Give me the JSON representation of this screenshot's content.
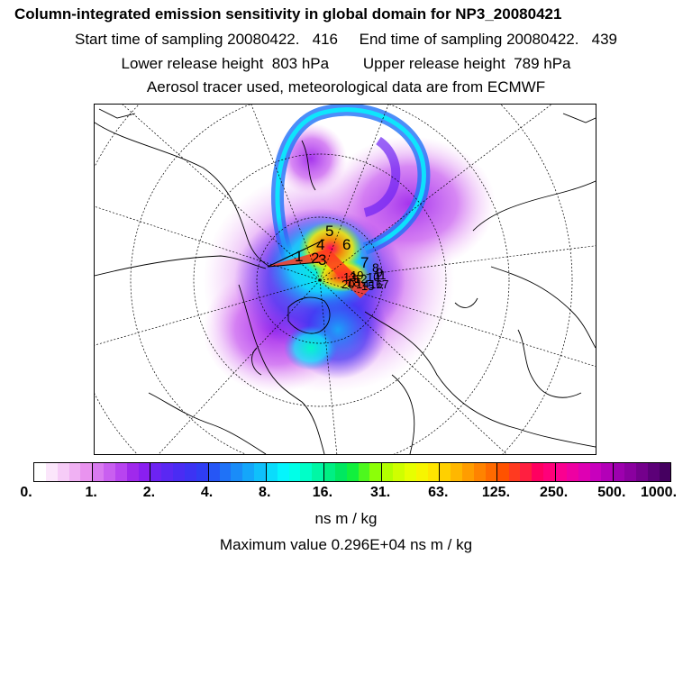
{
  "title": {
    "line1": "Column-integrated emission sensitivity in global domain for NP3_20080421",
    "line2": "Start time of sampling 20080422.   416     End time of sampling 20080422.   439",
    "line3": "Lower release height  803 hPa        Upper release height  789 hPa",
    "line4": "Aerosol tracer used, meteorological data are from ECMWF"
  },
  "chart_data": {
    "type": "heatmap",
    "title": "Column-integrated emission sensitivity in global domain for NP3_20080421",
    "projection": "polar stereographic (North Pole)",
    "colorbar": {
      "unit": "ns m / kg",
      "tick_labels": [
        "0.",
        "1.",
        "2.",
        "4.",
        "8.",
        "16.",
        "31.",
        "63.",
        "125.",
        "250.",
        "500.",
        "1000."
      ],
      "tick_values": [
        0,
        1,
        2,
        4,
        8,
        16,
        31,
        63,
        125,
        250,
        500,
        1000
      ],
      "colors": [
        "#ffffff",
        "#fbe6fb",
        "#f6ccf7",
        "#f0b1f3",
        "#e993ef",
        "#d97af0",
        "#c95ff0",
        "#b844f0",
        "#a029ec",
        "#8a1ff0",
        "#6d23f2",
        "#5a28f3",
        "#4a2cf3",
        "#3c33f3",
        "#2f3df3",
        "#2656f5",
        "#1f72f7",
        "#1a8cf8",
        "#14a6fa",
        "#0fc0fb",
        "#0adcfc",
        "#05f5fd",
        "#00ffe8",
        "#00ffc8",
        "#00f7a5",
        "#00ef83",
        "#00e860",
        "#11f03d",
        "#4df81e",
        "#8cff08",
        "#b2ff00",
        "#cfff00",
        "#e7ff00",
        "#f7f500",
        "#ffe500",
        "#ffd000",
        "#ffb700",
        "#ff9d00",
        "#ff8300",
        "#ff6a00",
        "#ff5200",
        "#ff3a20",
        "#ff1f40",
        "#ff0060",
        "#ff007a",
        "#fa0090",
        "#ee00a2",
        "#de00b3",
        "#c800bd",
        "#b300b8",
        "#9d00ae",
        "#8a009f",
        "#74008c",
        "#5c0078",
        "#450060"
      ],
      "extend": "neither"
    },
    "max_value": "0.296E+04",
    "release_points": [
      "1",
      "2",
      "3",
      "4",
      "5",
      "6",
      "7",
      "8",
      "9",
      "10",
      "11",
      "12",
      "13",
      "14",
      "15",
      "16",
      "17",
      "18",
      "19",
      "20"
    ]
  },
  "footer": {
    "unit": "ns m / kg",
    "max_text": "Maximum value  0.296E+04 ns m / kg"
  }
}
